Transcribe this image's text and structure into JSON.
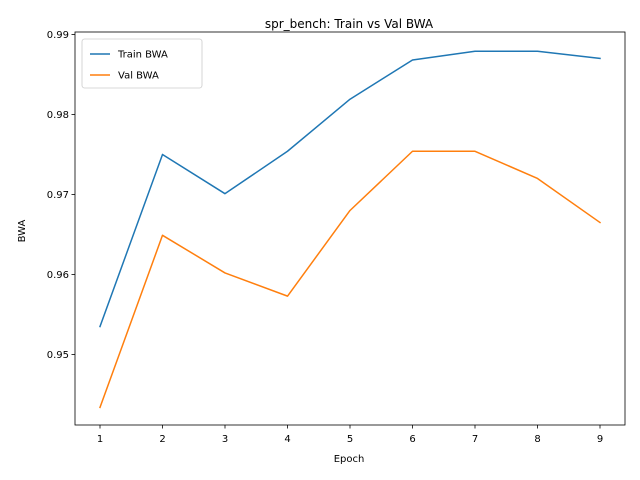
{
  "chart_data": {
    "type": "line",
    "title": "spr_bench: Train vs Val BWA",
    "xlabel": "Epoch",
    "ylabel": "BWA",
    "x": [
      1,
      2,
      3,
      4,
      5,
      6,
      7,
      8,
      9
    ],
    "xticks": [
      "1",
      "2",
      "3",
      "4",
      "5",
      "6",
      "7",
      "8",
      "9"
    ],
    "yticks": [
      "0.95",
      "0.96",
      "0.97",
      "0.98",
      "0.99"
    ],
    "ytick_values": [
      0.95,
      0.96,
      0.97,
      0.98,
      0.99
    ],
    "xlim": [
      0.6,
      9.4
    ],
    "ylim": [
      0.9412,
      0.9903
    ],
    "grid": false,
    "legend_position": "upper-left",
    "series": [
      {
        "name": "Train BWA",
        "color": "#1f77b4",
        "values": [
          0.9535,
          0.975,
          0.9701,
          0.9754,
          0.9819,
          0.9868,
          0.9879,
          0.9879,
          0.987
        ]
      },
      {
        "name": "Val BWA",
        "color": "#ff7f0e",
        "values": [
          0.9434,
          0.9649,
          0.9602,
          0.9573,
          0.968,
          0.9754,
          0.9754,
          0.972,
          0.9665
        ]
      }
    ]
  }
}
